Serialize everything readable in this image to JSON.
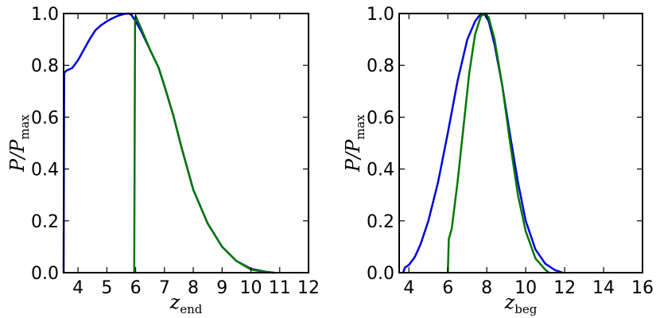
{
  "chart_data": [
    {
      "type": "line",
      "xlabel": {
        "main": "z",
        "sub": "end"
      },
      "ylabel": {
        "main": "P/P",
        "sub": "max"
      },
      "xlim": [
        3.5,
        12
      ],
      "ylim": [
        0,
        1
      ],
      "xticks": [
        4,
        5,
        6,
        7,
        8,
        9,
        10,
        11,
        12
      ],
      "yticks": [
        0.0,
        0.2,
        0.4,
        0.6,
        0.8,
        1.0
      ],
      "ytick_labels": [
        "0.0",
        "0.2",
        "0.4",
        "0.6",
        "0.8",
        "1.0"
      ],
      "series": [
        {
          "color": "#0000dd",
          "x": [
            3.5,
            3.52,
            3.6,
            3.8,
            4.0,
            4.2,
            4.4,
            4.6,
            4.8,
            5.0,
            5.2,
            5.4,
            5.6,
            5.75,
            5.85,
            6.0,
            6.2,
            6.5,
            6.8,
            7.0,
            7.3,
            7.6,
            7.8,
            8.0,
            8.5,
            9.0,
            9.5,
            10.0,
            10.5,
            10.8
          ],
          "y": [
            0.0,
            0.77,
            0.78,
            0.79,
            0.82,
            0.86,
            0.9,
            0.935,
            0.955,
            0.97,
            0.982,
            0.992,
            0.998,
            1.0,
            0.995,
            0.97,
            0.93,
            0.86,
            0.79,
            0.72,
            0.61,
            0.48,
            0.4,
            0.32,
            0.19,
            0.1,
            0.045,
            0.015,
            0.004,
            0.0
          ]
        },
        {
          "color": "#007700",
          "x": [
            5.95,
            5.98,
            6.0,
            6.2,
            6.5,
            6.8,
            7.0,
            7.3,
            7.6,
            7.8,
            8.0,
            8.5,
            9.0,
            9.5,
            10.0,
            10.5,
            10.8
          ],
          "y": [
            0.0,
            0.97,
            0.99,
            0.94,
            0.86,
            0.79,
            0.72,
            0.61,
            0.48,
            0.4,
            0.32,
            0.19,
            0.1,
            0.045,
            0.012,
            0.003,
            0.0
          ]
        }
      ]
    },
    {
      "type": "line",
      "xlabel": {
        "main": "z",
        "sub": "beg"
      },
      "ylabel": {
        "main": "P/P",
        "sub": "max"
      },
      "xlim": [
        3.5,
        16
      ],
      "ylim": [
        0,
        1
      ],
      "xticks": [
        4,
        6,
        8,
        10,
        12,
        14,
        16
      ],
      "yticks": [
        0.0,
        0.2,
        0.4,
        0.6,
        0.8,
        1.0
      ],
      "ytick_labels": [
        "0.0",
        "0.2",
        "0.4",
        "0.6",
        "0.8",
        "1.0"
      ],
      "series": [
        {
          "color": "#0000dd",
          "x": [
            3.7,
            3.8,
            4.0,
            4.3,
            4.6,
            5.0,
            5.5,
            6.0,
            6.5,
            7.0,
            7.4,
            7.7,
            7.9,
            8.1,
            8.4,
            8.8,
            9.2,
            9.6,
            10.0,
            10.5,
            11.0,
            11.5,
            11.9
          ],
          "y": [
            0.0,
            0.02,
            0.03,
            0.06,
            0.11,
            0.2,
            0.35,
            0.54,
            0.74,
            0.9,
            0.97,
            1.0,
            0.995,
            0.97,
            0.88,
            0.72,
            0.53,
            0.35,
            0.2,
            0.09,
            0.035,
            0.01,
            0.0
          ]
        },
        {
          "color": "#007700",
          "x": [
            6.0,
            6.05,
            6.2,
            6.5,
            6.8,
            7.1,
            7.4,
            7.7,
            7.9,
            8.1,
            8.4,
            8.8,
            9.2,
            9.6,
            10.0,
            10.5,
            11.0,
            11.2
          ],
          "y": [
            0.0,
            0.13,
            0.17,
            0.35,
            0.56,
            0.77,
            0.92,
            0.99,
            1.0,
            0.985,
            0.9,
            0.72,
            0.5,
            0.3,
            0.16,
            0.055,
            0.012,
            0.0
          ]
        }
      ]
    }
  ]
}
